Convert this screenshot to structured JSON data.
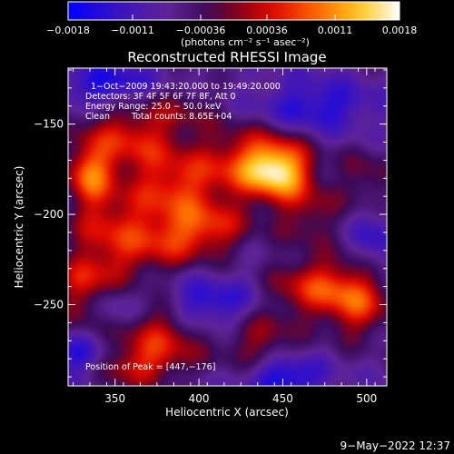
{
  "chart_data": {
    "type": "heatmap",
    "title": "Reconstructed RHESSI Image",
    "xlabel": "Heliocentric X (arcsec)",
    "ylabel": "Heliocentric Y (arcsec)",
    "xlim": [
      322,
      512
    ],
    "ylim": [
      -295,
      -119
    ],
    "x_ticks": [
      350,
      400,
      450,
      500
    ],
    "y_ticks": [
      -150,
      -200,
      -250
    ],
    "x_tick_labels": [
      "350",
      "400",
      "450",
      "500"
    ],
    "y_tick_labels": [
      "−150",
      "−200",
      "−250"
    ],
    "colorbar": {
      "range": [
        -0.0018,
        0.0018
      ],
      "ticks": [
        -0.0018,
        -0.0011,
        -0.00036,
        0.00036,
        0.0011,
        0.0018
      ],
      "tick_labels": [
        "−0.0018",
        "−0.0011",
        "−0.00036",
        "0.00036",
        "0.0011",
        "0.0018"
      ],
      "unit_label": "(photons cm⁻² s⁻¹ asec⁻²)"
    },
    "annotations": {
      "time_range": "1−Oct−2009 19:43:20.000 to 19:49:20.000",
      "detectors": "Detectors: 3F 4F 5F 6F 7F 8F, Att 0",
      "energy_range": "Energy Range: 25.0 − 50.0 keV",
      "clean": "Clean",
      "total_counts": "Total counts: 8.65E+04",
      "peak_position": "Position of Peak = [447,−176]"
    },
    "peak": {
      "x": 447,
      "y": -176
    },
    "sources": [
      {
        "x": 447,
        "y": -176,
        "sx": 14,
        "sy": 11,
        "amp": 0.0018
      },
      {
        "x": 428,
        "y": -170,
        "sx": 22,
        "sy": 14,
        "amp": 0.00105
      },
      {
        "x": 335,
        "y": -178,
        "sx": 10,
        "sy": 12,
        "amp": 0.00135
      },
      {
        "x": 360,
        "y": -158,
        "sx": 22,
        "sy": 14,
        "amp": 0.0011
      },
      {
        "x": 385,
        "y": -185,
        "sx": 20,
        "sy": 12,
        "amp": 0.00105
      },
      {
        "x": 405,
        "y": -208,
        "sx": 18,
        "sy": 11,
        "amp": 0.0011
      },
      {
        "x": 375,
        "y": -215,
        "sx": 18,
        "sy": 13,
        "amp": 0.0009
      },
      {
        "x": 345,
        "y": -205,
        "sx": 16,
        "sy": 12,
        "amp": 0.00085
      },
      {
        "x": 330,
        "y": -245,
        "sx": 10,
        "sy": 16,
        "amp": 0.0009
      },
      {
        "x": 345,
        "y": -230,
        "sx": 14,
        "sy": 10,
        "amp": 0.0007
      },
      {
        "x": 378,
        "y": -268,
        "sx": 18,
        "sy": 14,
        "amp": 0.0011
      },
      {
        "x": 360,
        "y": -285,
        "sx": 16,
        "sy": 8,
        "amp": 0.0008
      },
      {
        "x": 470,
        "y": -240,
        "sx": 20,
        "sy": 12,
        "amp": 0.00115
      },
      {
        "x": 495,
        "y": -250,
        "sx": 14,
        "sy": 14,
        "amp": 0.00105
      },
      {
        "x": 435,
        "y": -270,
        "sx": 16,
        "sy": 14,
        "amp": 0.0008
      },
      {
        "x": 465,
        "y": -200,
        "sx": 14,
        "sy": 12,
        "amp": 0.0007
      },
      {
        "x": 500,
        "y": -180,
        "sx": 12,
        "sy": 12,
        "amp": 0.0006
      },
      {
        "x": 418,
        "y": -240,
        "sx": 12,
        "sy": 10,
        "amp": 0.0005
      },
      {
        "x": 390,
        "y": -140,
        "sx": 16,
        "sy": 10,
        "amp": 0.0004
      },
      {
        "x": 345,
        "y": -128,
        "sx": 20,
        "sy": 8,
        "amp": -0.0009
      },
      {
        "x": 470,
        "y": -140,
        "sx": 24,
        "sy": 10,
        "amp": -0.0008
      },
      {
        "x": 420,
        "y": -245,
        "sx": 14,
        "sy": 12,
        "amp": -0.0009
      },
      {
        "x": 398,
        "y": -250,
        "sx": 14,
        "sy": 10,
        "amp": -0.0007
      },
      {
        "x": 450,
        "y": -290,
        "sx": 16,
        "sy": 8,
        "amp": -0.0011
      },
      {
        "x": 330,
        "y": -278,
        "sx": 10,
        "sy": 10,
        "amp": -0.0008
      },
      {
        "x": 505,
        "y": -215,
        "sx": 10,
        "sy": 12,
        "amp": -0.0006
      },
      {
        "x": 350,
        "y": -250,
        "sx": 12,
        "sy": 8,
        "amp": -0.0004
      }
    ]
  },
  "footer": {
    "timestamp": "9−May−2022 12:37"
  },
  "colors": {
    "background": "#000000",
    "text": "#ffffff"
  }
}
